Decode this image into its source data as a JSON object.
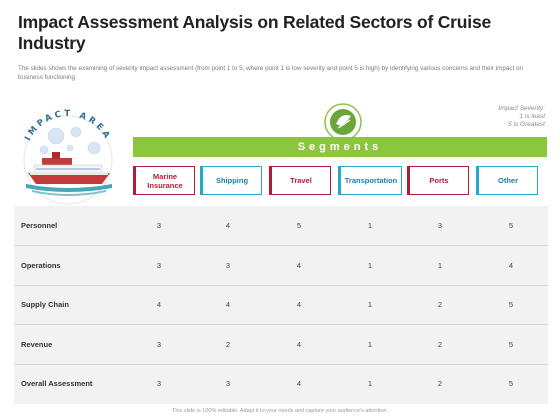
{
  "title": "Impact Assessment Analysis on Related Sectors of Cruise Industry",
  "subtitle": "The slides shows the examining of severity impact assessment (from point 1 to 5, where point 1 is low severity and point 5 is high) by identifying various concerns and their impact on business functioning",
  "impact_area_label": "IMPACT AREA",
  "severity": {
    "label": "Impact Severity:",
    "line1": "1 is least",
    "line2": "5 is Greatest"
  },
  "segments_label": "Segments",
  "segments": [
    {
      "label": "Marine Insurance",
      "style": "red"
    },
    {
      "label": "Shipping",
      "style": "blue"
    },
    {
      "label": "Travel",
      "style": "red"
    },
    {
      "label": "Transportation",
      "style": "blue"
    },
    {
      "label": "Ports",
      "style": "red"
    },
    {
      "label": "Other",
      "style": "blue"
    }
  ],
  "rows": [
    {
      "label": "Personnel",
      "values": [
        "3",
        "4",
        "5",
        "1",
        "3",
        "5"
      ]
    },
    {
      "label": "Operations",
      "values": [
        "3",
        "3",
        "4",
        "1",
        "1",
        "4"
      ]
    },
    {
      "label": "Supply Chain",
      "values": [
        "4",
        "4",
        "4",
        "1",
        "2",
        "5"
      ]
    },
    {
      "label": "Revenue",
      "values": [
        "3",
        "2",
        "4",
        "1",
        "2",
        "5"
      ]
    },
    {
      "label": "Overall Assessment",
      "values": [
        "3",
        "3",
        "4",
        "1",
        "2",
        "5"
      ]
    }
  ],
  "footer": "This slide is 100% editable. Adapt it to your needs and capture your audience's attention.",
  "colors": {
    "accent_green": "#8cc63f",
    "red": "#b01d3a",
    "blue": "#27a7c9"
  },
  "icons": {
    "gear": "gear-leaf-icon",
    "ship": "cruise-ship-icon",
    "virus": "virus-icon"
  }
}
